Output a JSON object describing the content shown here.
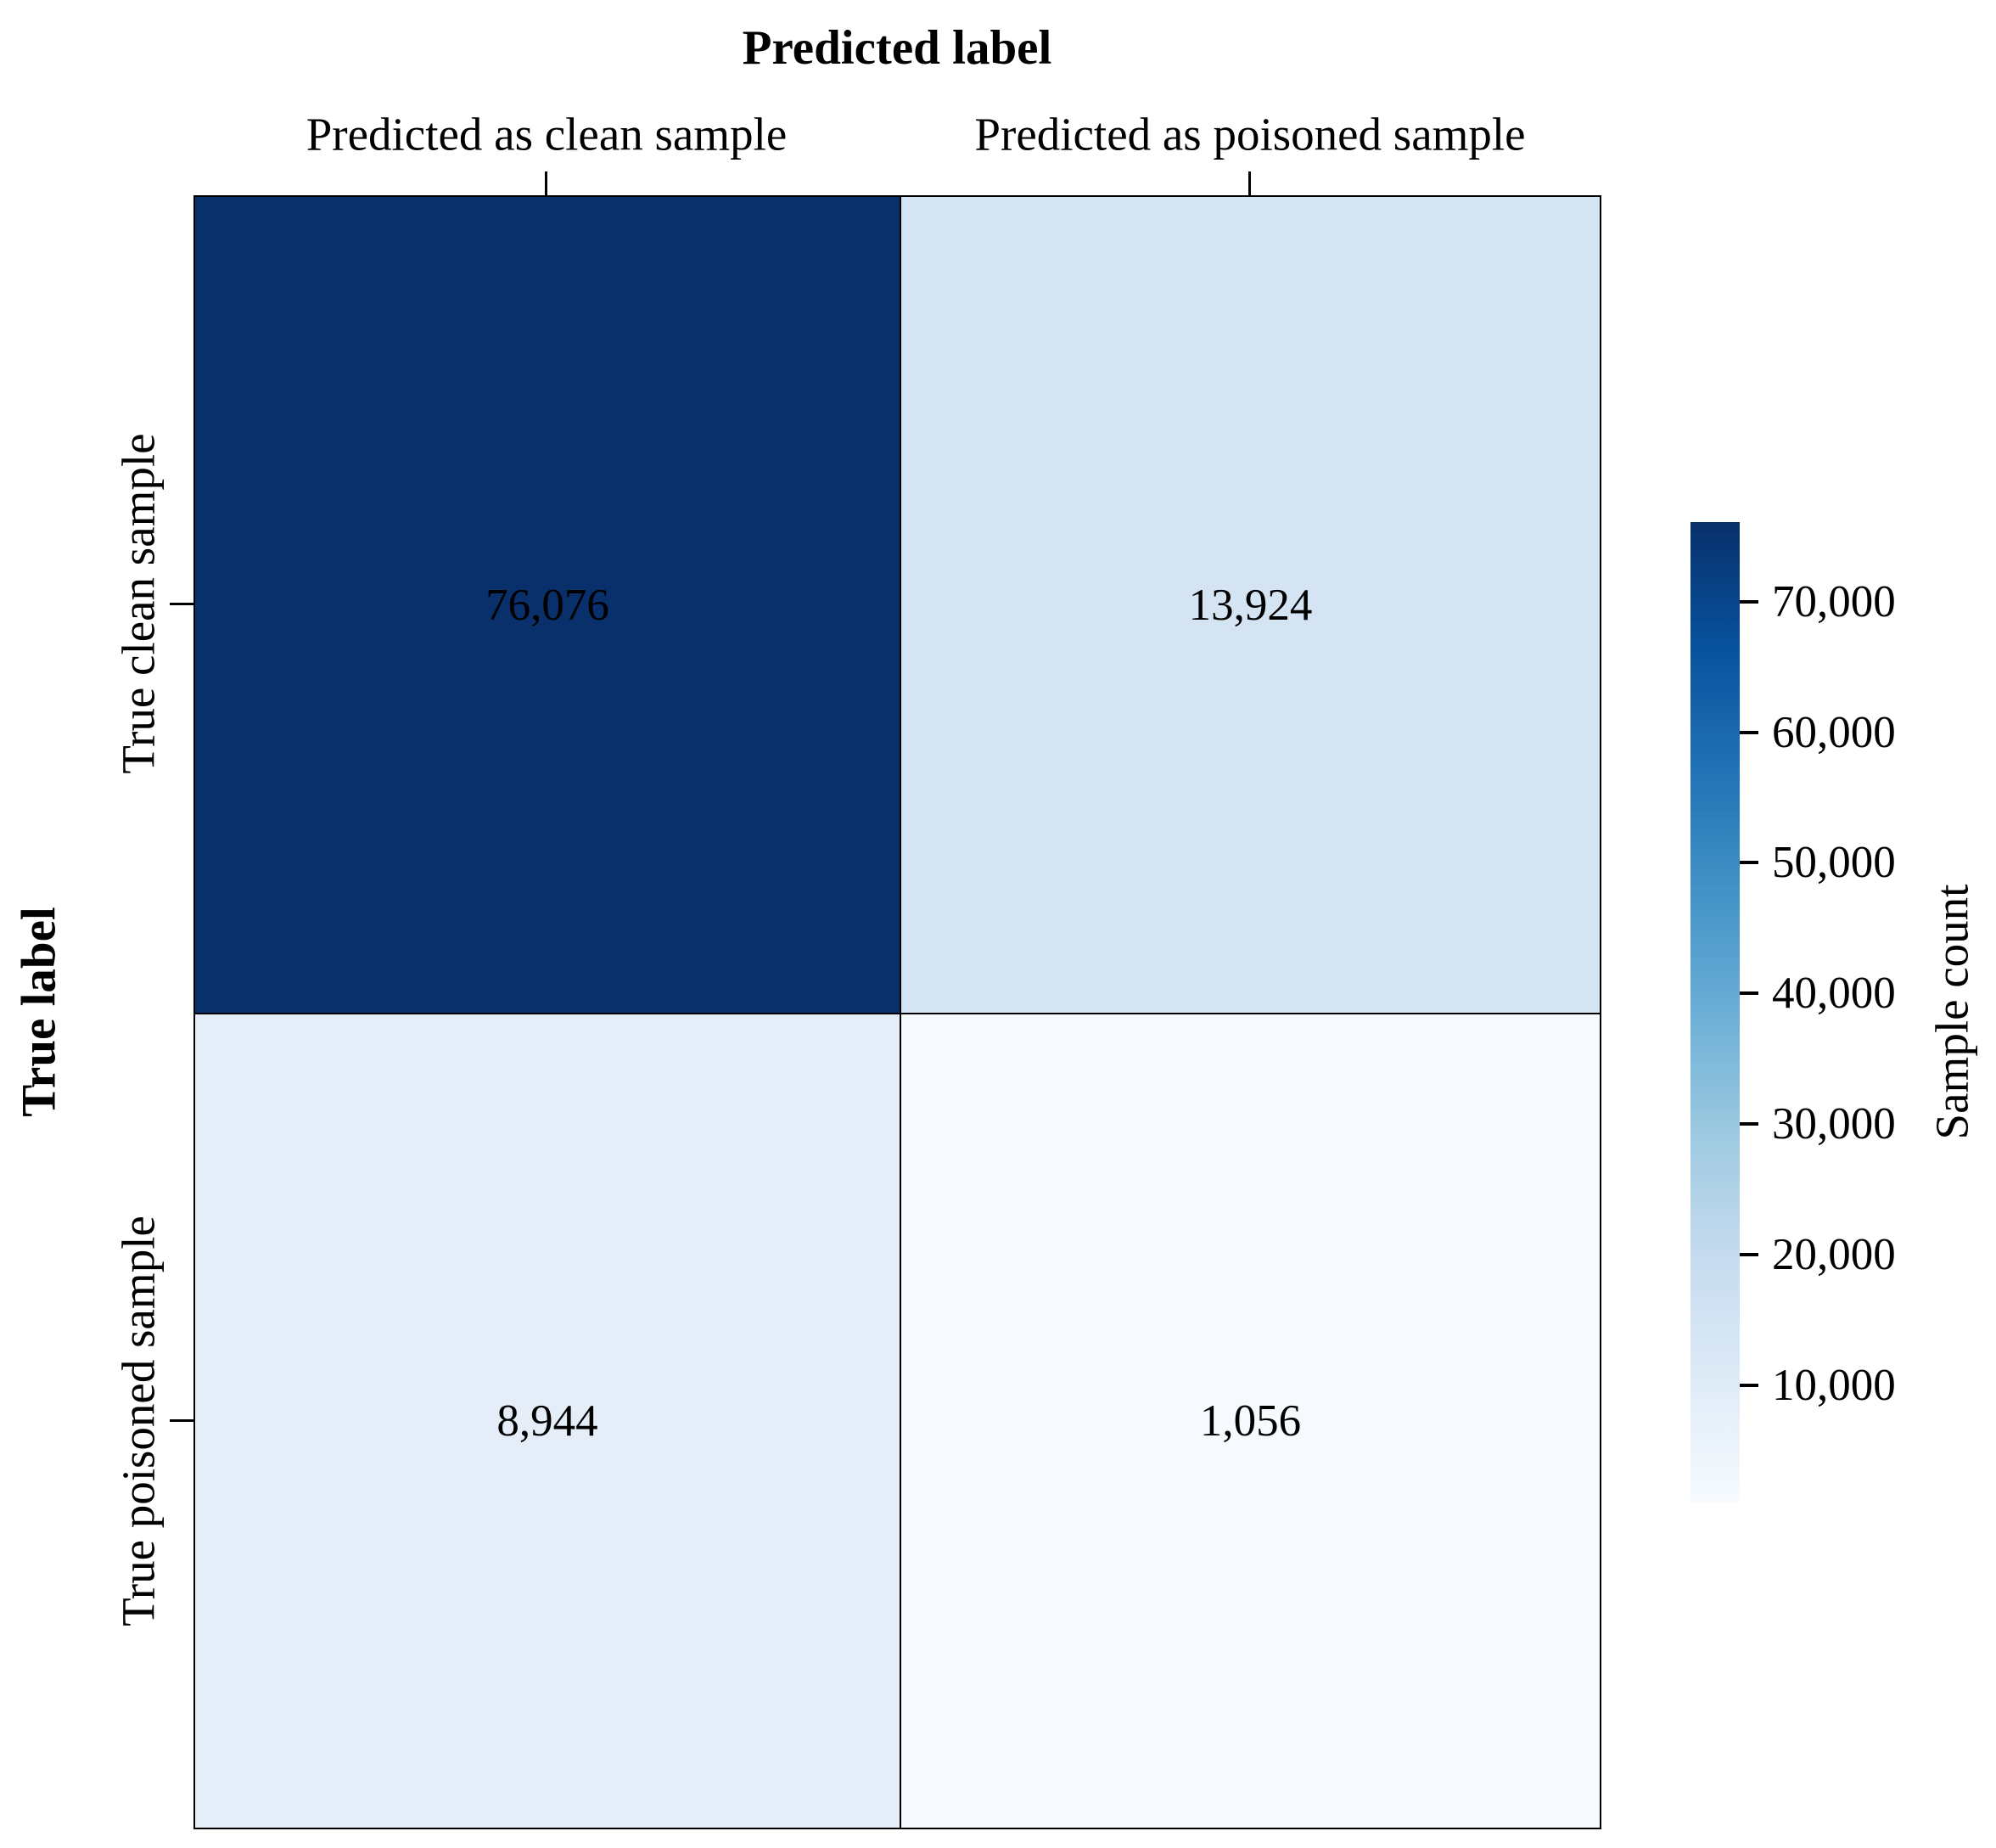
{
  "chart_data": {
    "type": "heatmap",
    "x_axis_title": "Predicted label",
    "y_axis_title": "True label",
    "columns": [
      "Predicted as clean sample",
      "Predicted as poisoned sample"
    ],
    "rows": [
      "True clean sample",
      "True poisoned sample"
    ],
    "values": [
      [
        76076,
        13924
      ],
      [
        8944,
        1056
      ]
    ],
    "cells": [
      {
        "row": "True clean sample",
        "col": "Predicted as clean sample",
        "value": 76076,
        "label": "76,076",
        "color": "#09306b"
      },
      {
        "row": "True clean sample",
        "col": "Predicted as poisoned sample",
        "value": 13924,
        "label": "13,924",
        "color": "#d5e4f3"
      },
      {
        "row": "True poisoned sample",
        "col": "Predicted as clean sample",
        "value": 8944,
        "label": "8,944",
        "color": "#e5eef8"
      },
      {
        "row": "True poisoned sample",
        "col": "Predicted as poisoned sample",
        "value": 1056,
        "label": "1,056",
        "color": "#f6fafe"
      }
    ],
    "colorbar": {
      "label": "Sample count",
      "vmin": 1056,
      "vmax": 76076,
      "ticks": [
        {
          "value": 70000,
          "label": "70,000"
        },
        {
          "value": 60000,
          "label": "60,000"
        },
        {
          "value": 50000,
          "label": "50,000"
        },
        {
          "value": 40000,
          "label": "40,000"
        },
        {
          "value": 30000,
          "label": "30,000"
        },
        {
          "value": 20000,
          "label": "20,000"
        },
        {
          "value": 10000,
          "label": "10,000"
        }
      ],
      "gradient": [
        "#f7fbff",
        "#deebf7",
        "#c6dbef",
        "#9ecae1",
        "#6baed6",
        "#4292c6",
        "#2171b5",
        "#08519c",
        "#08306b"
      ]
    },
    "grid": false,
    "legend_position": "right-colorbar"
  }
}
